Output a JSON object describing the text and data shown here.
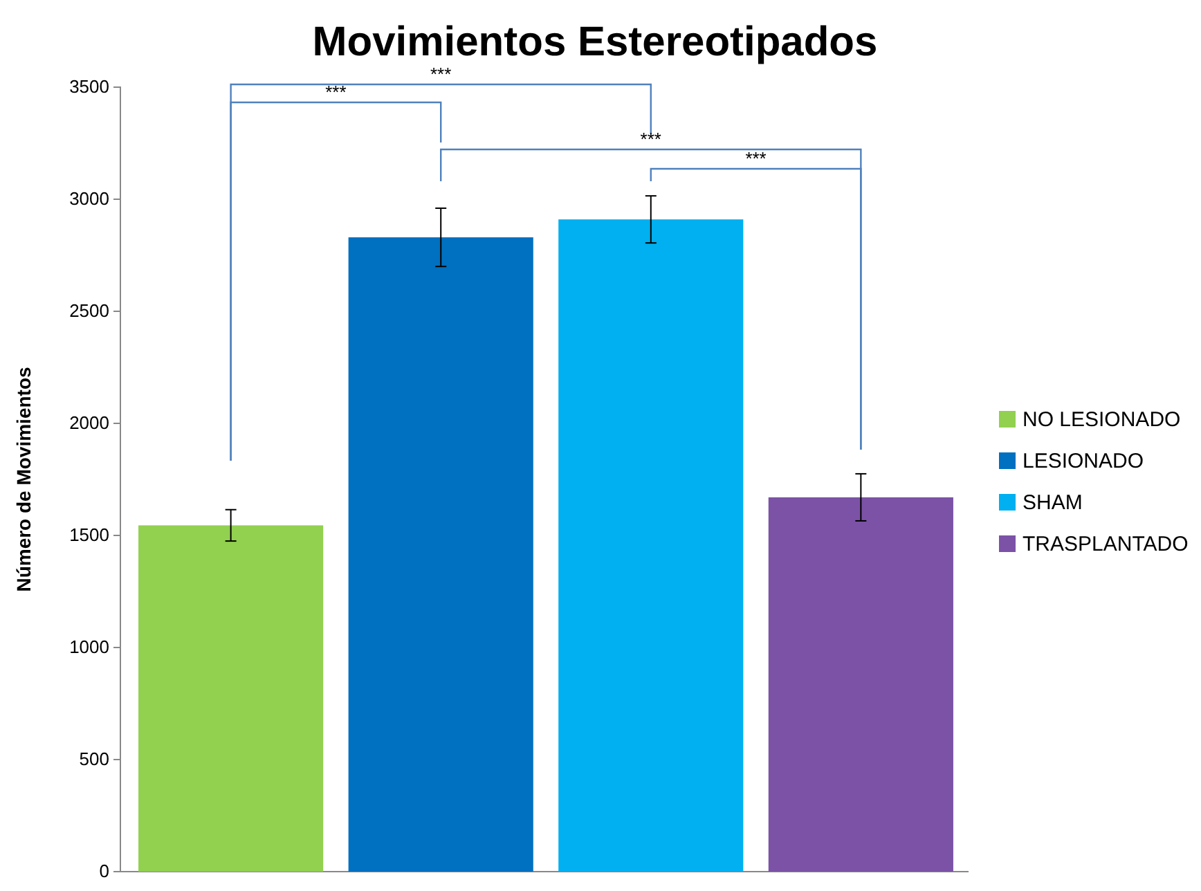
{
  "chart_data": {
    "type": "bar",
    "title": "Movimientos Estereotipados",
    "ylabel": "Número de Movimientos",
    "categories": [
      null,
      null,
      null,
      null
    ],
    "series": [
      {
        "name": "NO LESIONADO",
        "color": "#92d050",
        "values": [
          1545,
          null,
          null,
          null
        ],
        "errors": [
          70,
          null,
          null,
          null
        ]
      },
      {
        "name": "LESIONADO",
        "color": "#0070c0",
        "values": [
          null,
          2830,
          null,
          null
        ],
        "errors": [
          null,
          130,
          null,
          null
        ]
      },
      {
        "name": "SHAM",
        "color": "#00b0f0",
        "values": [
          null,
          null,
          2910,
          null
        ],
        "errors": [
          null,
          null,
          105,
          null
        ]
      },
      {
        "name": "TRASPLANTADO",
        "color": "#7b52a6",
        "values": [
          null,
          null,
          null,
          1670
        ],
        "errors": [
          null,
          null,
          null,
          105
        ]
      }
    ],
    "ylim": [
      0,
      3500
    ],
    "yticks": [
      0,
      500,
      1000,
      1500,
      2000,
      2500,
      3000,
      3500
    ],
    "legend": "right",
    "grid": false,
    "annotations": [
      "***",
      "***",
      "***",
      "***"
    ]
  }
}
